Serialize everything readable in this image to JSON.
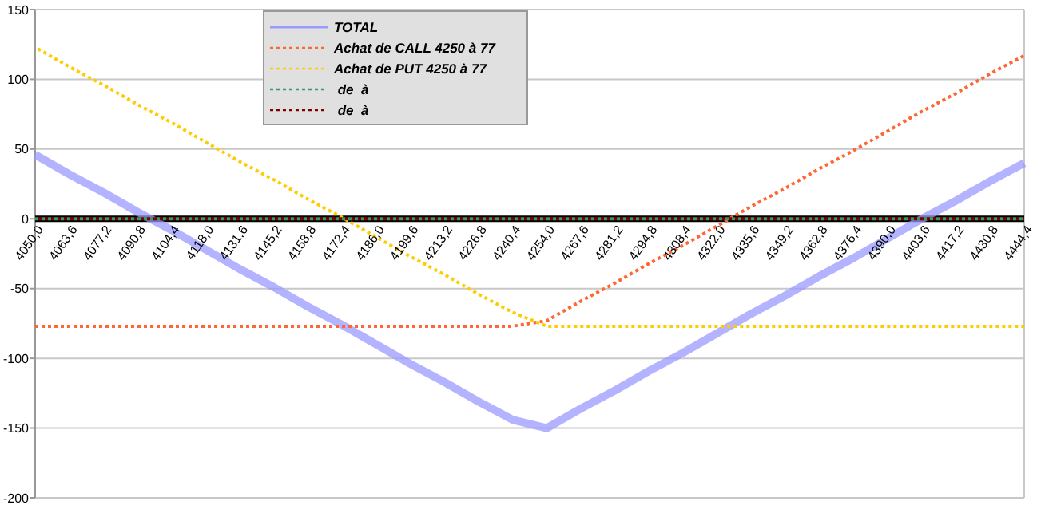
{
  "chart_data": {
    "type": "line",
    "categories": [
      "4050,0",
      "4063,6",
      "4077,2",
      "4090,8",
      "4104,4",
      "4118,0",
      "4131,6",
      "4145,2",
      "4158,8",
      "4172,4",
      "4186,0",
      "4199,6",
      "4213,2",
      "4226,8",
      "4240,4",
      "4254,0",
      "4267,6",
      "4281,2",
      "4294,8",
      "4308,4",
      "4322,0",
      "4335,6",
      "4349,2",
      "4362,8",
      "4376,4",
      "4390,0",
      "4403,6",
      "4417,2",
      "4430,8",
      "4444,4"
    ],
    "series": [
      {
        "name": "TOTAL",
        "color": "#9999ff",
        "line_style": "solid",
        "values": [
          46,
          32,
          19,
          5,
          -8,
          -22,
          -36,
          -49,
          -63,
          -76,
          -90,
          -104,
          -117,
          -131,
          -144,
          -150,
          -136,
          -123,
          -109,
          -96,
          -82,
          -68,
          -55,
          -41,
          -28,
          -14,
          0,
          13,
          27,
          40
        ]
      },
      {
        "name": "Achat de CALL 4250 à 77",
        "color": "#ff6633",
        "line_style": "dotted",
        "values": [
          -77,
          -77,
          -77,
          -77,
          -77,
          -77,
          -77,
          -77,
          -77,
          -77,
          -77,
          -77,
          -77,
          -77,
          -77,
          -73,
          -59,
          -46,
          -32,
          -19,
          -5,
          9,
          22,
          36,
          49,
          63,
          77,
          90,
          104,
          117
        ]
      },
      {
        "name": "Achat de PUT 4250 à 77",
        "color": "#ffcc00",
        "line_style": "dotted",
        "values": [
          123,
          109,
          96,
          82,
          69,
          55,
          41,
          28,
          14,
          1,
          -13,
          -27,
          -40,
          -54,
          -67,
          -77,
          -77,
          -77,
          -77,
          -77,
          -77,
          -77,
          -77,
          -77,
          -77,
          -77,
          -77,
          -77,
          -77,
          -77
        ]
      },
      {
        "name": " de  à",
        "color": "#339966",
        "line_style": "dotted",
        "values": [
          0,
          0,
          0,
          0,
          0,
          0,
          0,
          0,
          0,
          0,
          0,
          0,
          0,
          0,
          0,
          0,
          0,
          0,
          0,
          0,
          0,
          0,
          0,
          0,
          0,
          0,
          0,
          0,
          0,
          0
        ]
      },
      {
        "name": " de  à",
        "color": "#800000",
        "line_style": "dotted",
        "values": [
          0,
          0,
          0,
          0,
          0,
          0,
          0,
          0,
          0,
          0,
          0,
          0,
          0,
          0,
          0,
          0,
          0,
          0,
          0,
          0,
          0,
          0,
          0,
          0,
          0,
          0,
          0,
          0,
          0,
          0
        ]
      }
    ],
    "ylim": [
      -200,
      150
    ],
    "yticks": [
      -200,
      -150,
      -100,
      -50,
      0,
      50,
      100,
      150
    ],
    "grid": "y",
    "legend": "top",
    "marker": "none"
  }
}
